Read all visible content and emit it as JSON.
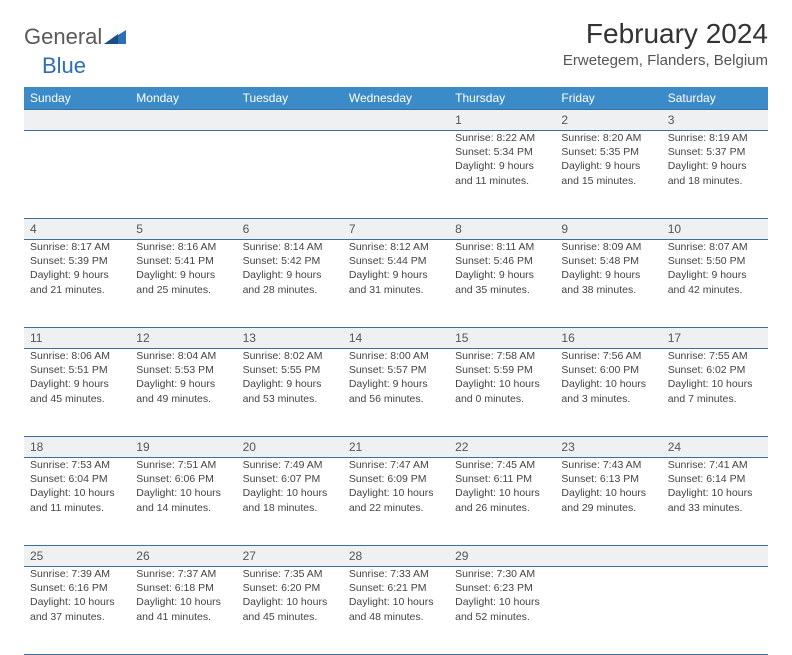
{
  "logo": {
    "general": "General",
    "blue": "Blue"
  },
  "title": "February 2024",
  "location": "Erwetegem, Flanders, Belgium",
  "colors": {
    "header_bg": "#3b8bc9",
    "header_text": "#ffffff",
    "border": "#3b6fa3",
    "daynum_bg": "#eef0f2",
    "text": "#444444",
    "logo_gray": "#5a5a5a",
    "logo_blue": "#2c6fb3"
  },
  "dow": [
    "Sunday",
    "Monday",
    "Tuesday",
    "Wednesday",
    "Thursday",
    "Friday",
    "Saturday"
  ],
  "weeks": [
    [
      null,
      null,
      null,
      null,
      {
        "num": "1",
        "sunrise": "Sunrise: 8:22 AM",
        "sunset": "Sunset: 5:34 PM",
        "dl1": "Daylight: 9 hours",
        "dl2": "and 11 minutes."
      },
      {
        "num": "2",
        "sunrise": "Sunrise: 8:20 AM",
        "sunset": "Sunset: 5:35 PM",
        "dl1": "Daylight: 9 hours",
        "dl2": "and 15 minutes."
      },
      {
        "num": "3",
        "sunrise": "Sunrise: 8:19 AM",
        "sunset": "Sunset: 5:37 PM",
        "dl1": "Daylight: 9 hours",
        "dl2": "and 18 minutes."
      }
    ],
    [
      {
        "num": "4",
        "sunrise": "Sunrise: 8:17 AM",
        "sunset": "Sunset: 5:39 PM",
        "dl1": "Daylight: 9 hours",
        "dl2": "and 21 minutes."
      },
      {
        "num": "5",
        "sunrise": "Sunrise: 8:16 AM",
        "sunset": "Sunset: 5:41 PM",
        "dl1": "Daylight: 9 hours",
        "dl2": "and 25 minutes."
      },
      {
        "num": "6",
        "sunrise": "Sunrise: 8:14 AM",
        "sunset": "Sunset: 5:42 PM",
        "dl1": "Daylight: 9 hours",
        "dl2": "and 28 minutes."
      },
      {
        "num": "7",
        "sunrise": "Sunrise: 8:12 AM",
        "sunset": "Sunset: 5:44 PM",
        "dl1": "Daylight: 9 hours",
        "dl2": "and 31 minutes."
      },
      {
        "num": "8",
        "sunrise": "Sunrise: 8:11 AM",
        "sunset": "Sunset: 5:46 PM",
        "dl1": "Daylight: 9 hours",
        "dl2": "and 35 minutes."
      },
      {
        "num": "9",
        "sunrise": "Sunrise: 8:09 AM",
        "sunset": "Sunset: 5:48 PM",
        "dl1": "Daylight: 9 hours",
        "dl2": "and 38 minutes."
      },
      {
        "num": "10",
        "sunrise": "Sunrise: 8:07 AM",
        "sunset": "Sunset: 5:50 PM",
        "dl1": "Daylight: 9 hours",
        "dl2": "and 42 minutes."
      }
    ],
    [
      {
        "num": "11",
        "sunrise": "Sunrise: 8:06 AM",
        "sunset": "Sunset: 5:51 PM",
        "dl1": "Daylight: 9 hours",
        "dl2": "and 45 minutes."
      },
      {
        "num": "12",
        "sunrise": "Sunrise: 8:04 AM",
        "sunset": "Sunset: 5:53 PM",
        "dl1": "Daylight: 9 hours",
        "dl2": "and 49 minutes."
      },
      {
        "num": "13",
        "sunrise": "Sunrise: 8:02 AM",
        "sunset": "Sunset: 5:55 PM",
        "dl1": "Daylight: 9 hours",
        "dl2": "and 53 minutes."
      },
      {
        "num": "14",
        "sunrise": "Sunrise: 8:00 AM",
        "sunset": "Sunset: 5:57 PM",
        "dl1": "Daylight: 9 hours",
        "dl2": "and 56 minutes."
      },
      {
        "num": "15",
        "sunrise": "Sunrise: 7:58 AM",
        "sunset": "Sunset: 5:59 PM",
        "dl1": "Daylight: 10 hours",
        "dl2": "and 0 minutes."
      },
      {
        "num": "16",
        "sunrise": "Sunrise: 7:56 AM",
        "sunset": "Sunset: 6:00 PM",
        "dl1": "Daylight: 10 hours",
        "dl2": "and 3 minutes."
      },
      {
        "num": "17",
        "sunrise": "Sunrise: 7:55 AM",
        "sunset": "Sunset: 6:02 PM",
        "dl1": "Daylight: 10 hours",
        "dl2": "and 7 minutes."
      }
    ],
    [
      {
        "num": "18",
        "sunrise": "Sunrise: 7:53 AM",
        "sunset": "Sunset: 6:04 PM",
        "dl1": "Daylight: 10 hours",
        "dl2": "and 11 minutes."
      },
      {
        "num": "19",
        "sunrise": "Sunrise: 7:51 AM",
        "sunset": "Sunset: 6:06 PM",
        "dl1": "Daylight: 10 hours",
        "dl2": "and 14 minutes."
      },
      {
        "num": "20",
        "sunrise": "Sunrise: 7:49 AM",
        "sunset": "Sunset: 6:07 PM",
        "dl1": "Daylight: 10 hours",
        "dl2": "and 18 minutes."
      },
      {
        "num": "21",
        "sunrise": "Sunrise: 7:47 AM",
        "sunset": "Sunset: 6:09 PM",
        "dl1": "Daylight: 10 hours",
        "dl2": "and 22 minutes."
      },
      {
        "num": "22",
        "sunrise": "Sunrise: 7:45 AM",
        "sunset": "Sunset: 6:11 PM",
        "dl1": "Daylight: 10 hours",
        "dl2": "and 26 minutes."
      },
      {
        "num": "23",
        "sunrise": "Sunrise: 7:43 AM",
        "sunset": "Sunset: 6:13 PM",
        "dl1": "Daylight: 10 hours",
        "dl2": "and 29 minutes."
      },
      {
        "num": "24",
        "sunrise": "Sunrise: 7:41 AM",
        "sunset": "Sunset: 6:14 PM",
        "dl1": "Daylight: 10 hours",
        "dl2": "and 33 minutes."
      }
    ],
    [
      {
        "num": "25",
        "sunrise": "Sunrise: 7:39 AM",
        "sunset": "Sunset: 6:16 PM",
        "dl1": "Daylight: 10 hours",
        "dl2": "and 37 minutes."
      },
      {
        "num": "26",
        "sunrise": "Sunrise: 7:37 AM",
        "sunset": "Sunset: 6:18 PM",
        "dl1": "Daylight: 10 hours",
        "dl2": "and 41 minutes."
      },
      {
        "num": "27",
        "sunrise": "Sunrise: 7:35 AM",
        "sunset": "Sunset: 6:20 PM",
        "dl1": "Daylight: 10 hours",
        "dl2": "and 45 minutes."
      },
      {
        "num": "28",
        "sunrise": "Sunrise: 7:33 AM",
        "sunset": "Sunset: 6:21 PM",
        "dl1": "Daylight: 10 hours",
        "dl2": "and 48 minutes."
      },
      {
        "num": "29",
        "sunrise": "Sunrise: 7:30 AM",
        "sunset": "Sunset: 6:23 PM",
        "dl1": "Daylight: 10 hours",
        "dl2": "and 52 minutes."
      },
      null,
      null
    ]
  ]
}
